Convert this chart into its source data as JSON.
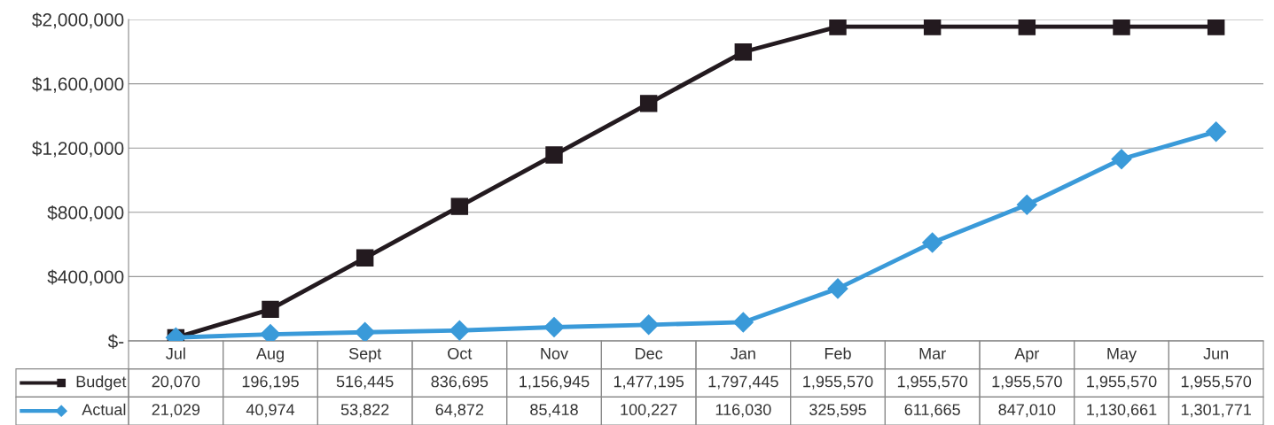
{
  "chart_data": {
    "type": "line",
    "categories": [
      "Jul",
      "Aug",
      "Sept",
      "Oct",
      "Nov",
      "Dec",
      "Jan",
      "Feb",
      "Mar",
      "Apr",
      "May",
      "Jun"
    ],
    "series": [
      {
        "name": "Budget",
        "color": "#231a1f",
        "marker": "square",
        "values": [
          20070,
          196195,
          516445,
          836695,
          1156945,
          1477195,
          1797445,
          1955570,
          1955570,
          1955570,
          1955570,
          1955570
        ],
        "value_labels": [
          "20,070",
          "196,195",
          "516,445",
          "836,695",
          "1,156,945",
          "1,477,195",
          "1,797,445",
          "1,955,570",
          "1,955,570",
          "1,955,570",
          "1,955,570",
          "1,955,570"
        ]
      },
      {
        "name": "Actual",
        "color": "#3a9ad9",
        "marker": "diamond",
        "values": [
          21029,
          40974,
          53822,
          64872,
          85418,
          100227,
          116030,
          325595,
          611665,
          847010,
          1130661,
          1301771
        ],
        "value_labels": [
          "21,029",
          "40,974",
          "53,822",
          "64,872",
          "85,418",
          "100,227",
          "116,030",
          "325,595",
          "611,665",
          "847,010",
          "1,130,661",
          "1,301,771"
        ]
      }
    ],
    "ylim": [
      0,
      2000000
    ],
    "yticks": [
      {
        "value": 0,
        "label": "$-"
      },
      {
        "value": 400000,
        "label": "$400,000"
      },
      {
        "value": 800000,
        "label": "$800,000"
      },
      {
        "value": 1200000,
        "label": "$1,200,000"
      },
      {
        "value": 1600000,
        "label": "$1,600,000"
      },
      {
        "value": 2000000,
        "label": "$2,000,000"
      }
    ],
    "grid": "y",
    "line_style": "solid",
    "legend": "bottom"
  }
}
